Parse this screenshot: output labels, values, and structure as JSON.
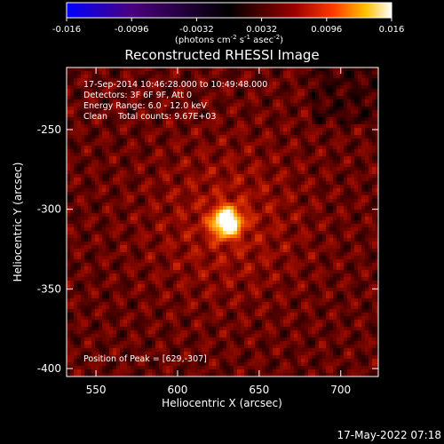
{
  "chart_data": {
    "type": "heatmap",
    "title": "Reconstructed RHESSI Image",
    "xlabel": "Heliocentric X (arcsec)",
    "ylabel": "Heliocentric Y (arcsec)",
    "xlim": [
      532,
      723
    ],
    "ylim": [
      -405,
      -211
    ],
    "xticks": [
      550,
      600,
      650,
      700
    ],
    "yticks": [
      -250,
      -300,
      -350,
      -400
    ],
    "colorbar": {
      "min": -0.016,
      "max": 0.016,
      "ticks": [
        "-0.016",
        "-0.0096",
        "-0.0032",
        "0.0032",
        "0.0096",
        "0.016"
      ],
      "tick_values": [
        -0.016,
        -0.0096,
        -0.0032,
        0.0032,
        0.0096,
        0.016
      ],
      "unit_text": "(photons cm",
      "unit_exp1": "-2",
      "unit_s": " s",
      "unit_exp2": "-1",
      "unit_asec": " asec",
      "unit_exp3": "-2",
      "unit_close": ")",
      "colors": [
        "#0000ff",
        "#4a0080",
        "#000000",
        "#800000",
        "#ff3000",
        "#ffb000",
        "#ffffff"
      ]
    },
    "annotations": [
      "17-Sep-2014 10:46:28.000 to 10:49:48.000",
      "Detectors: 3F 6F 9F, Att 0",
      "Energy Range: 6.0 - 12.0 keV",
      "Clean    Total counts: 9.67E+03"
    ],
    "peak_label": "Position of Peak = [629,-307]",
    "peak": {
      "x": 629,
      "y": -307
    },
    "peak_value": 0.016,
    "background_level": 0.0035
  },
  "footer_timestamp": "17-May-2022 07:18"
}
